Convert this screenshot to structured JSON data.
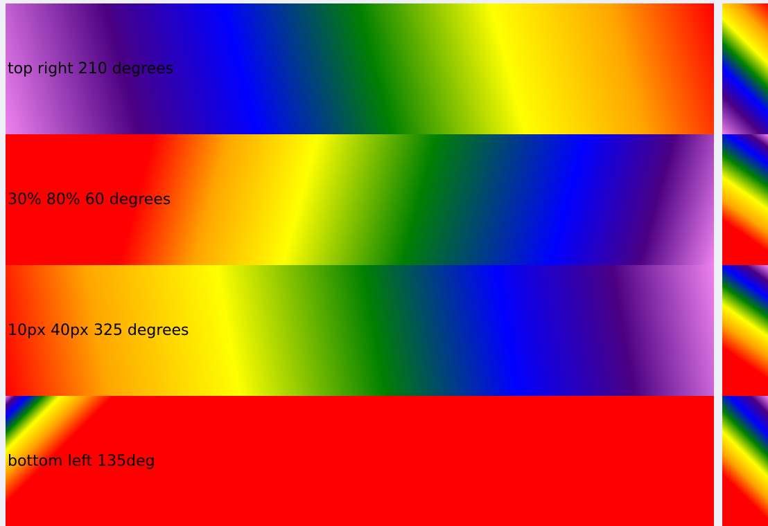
{
  "rows": [
    {
      "label": "top right 210 degrees"
    },
    {
      "label": "30% 80% 60 degrees"
    },
    {
      "label": "10px 40px 325 degrees"
    },
    {
      "label": "bottom left 135deg"
    }
  ],
  "colors": {
    "page_background": "#efeff8",
    "gradient_stops": [
      "#ff0000",
      "#ffa500",
      "#ffff00",
      "#008000",
      "#0000ff",
      "#4b0082",
      "#ee82ee"
    ]
  }
}
